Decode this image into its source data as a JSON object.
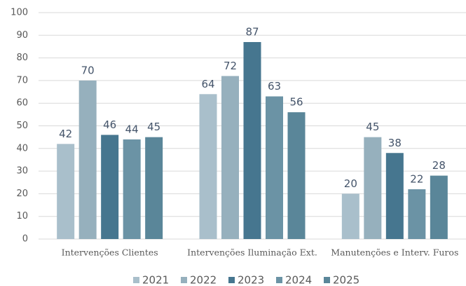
{
  "chart_data": {
    "type": "bar",
    "categories": [
      "Intervenções Clientes",
      "Intervenções Iluminação Ext.",
      "Manutenções e Interv. Furos"
    ],
    "series": [
      {
        "name": "2021",
        "color": "#a9bfcb",
        "values": [
          42,
          64,
          20
        ]
      },
      {
        "name": "2022",
        "color": "#96b0bd",
        "values": [
          70,
          72,
          45
        ]
      },
      {
        "name": "2023",
        "color": "#46768f",
        "values": [
          46,
          87,
          38
        ]
      },
      {
        "name": "2024",
        "color": "#6b93a5",
        "values": [
          44,
          63,
          22
        ]
      },
      {
        "name": "2025",
        "color": "#5a8699",
        "values": [
          45,
          56,
          28
        ]
      }
    ],
    "ylim": [
      0,
      100
    ],
    "yticks": [
      0,
      10,
      20,
      30,
      40,
      50,
      60,
      70,
      80,
      90,
      100
    ],
    "grid": true,
    "legend": "bottom"
  }
}
